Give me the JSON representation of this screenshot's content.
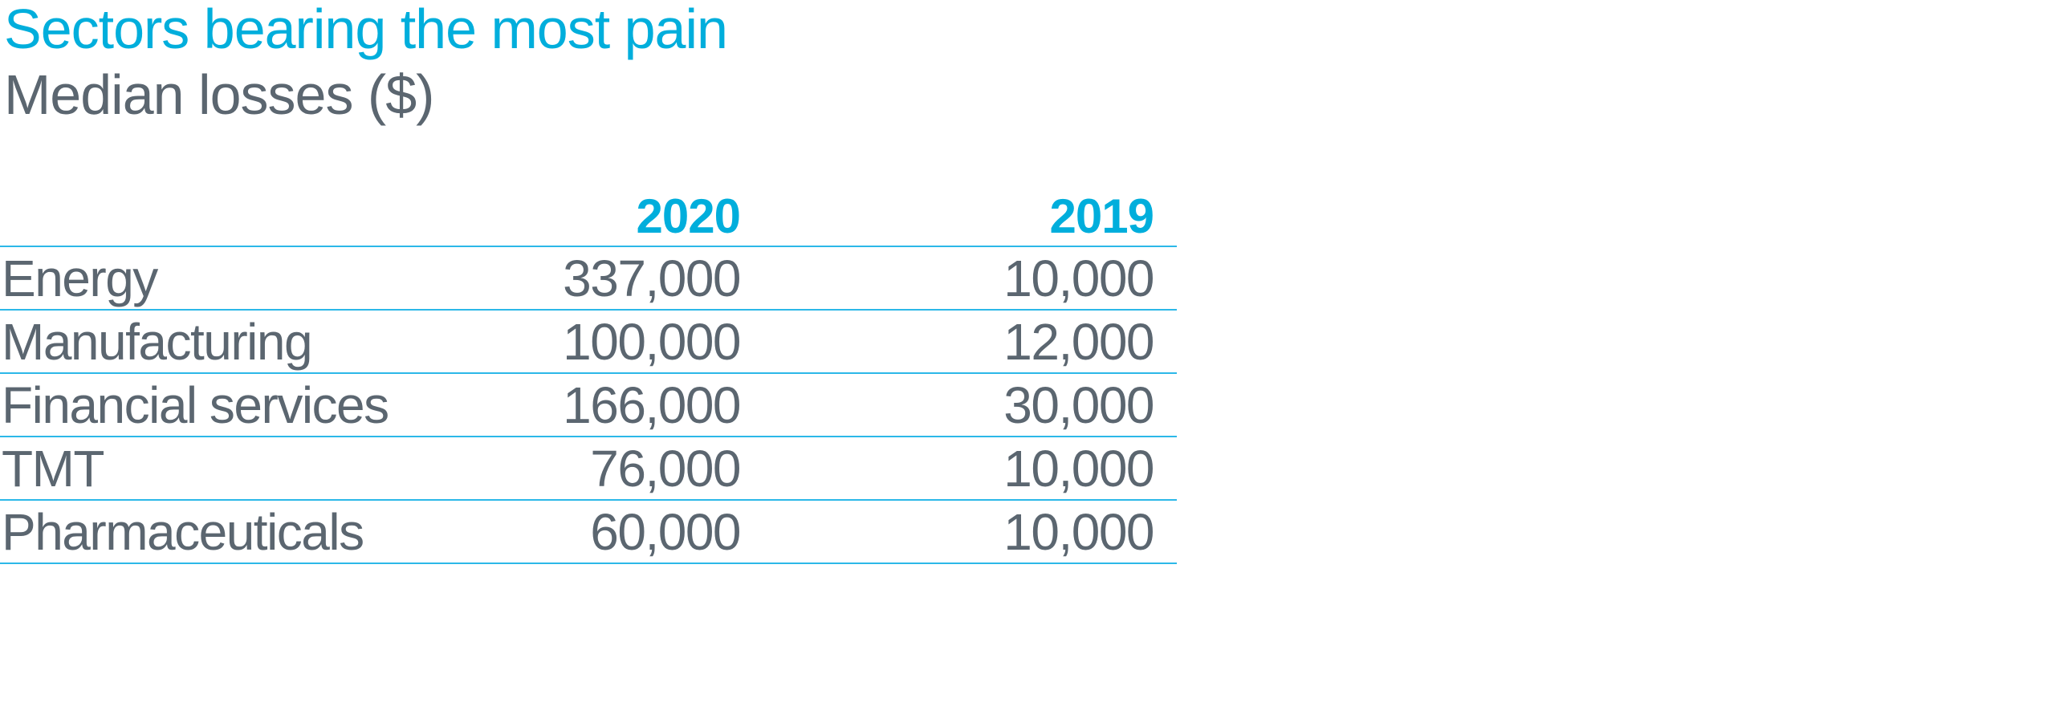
{
  "title": "Sectors bearing the most pain",
  "subtitle": "Median losses ($)",
  "colors": {
    "accent": "#00AEDC",
    "line": "#2CB8E8",
    "gray": "#5B6670",
    "background": "#FFFFFF"
  },
  "chart_data": {
    "type": "table",
    "title": "Sectors bearing the most pain",
    "subtitle": "Median losses ($)",
    "columns": [
      "",
      "2020",
      "2019"
    ],
    "rows": [
      {
        "sector": "Energy",
        "y2020": "337,000",
        "y2019": "10,000"
      },
      {
        "sector": "Manufacturing",
        "y2020": "100,000",
        "y2019": "12,000"
      },
      {
        "sector": "Financial services",
        "y2020": "166,000",
        "y2019": "30,000"
      },
      {
        "sector": "TMT",
        "y2020": "76,000",
        "y2019": "10,000"
      },
      {
        "sector": "Pharmaceuticals",
        "y2020": "60,000",
        "y2019": "10,000"
      }
    ]
  }
}
